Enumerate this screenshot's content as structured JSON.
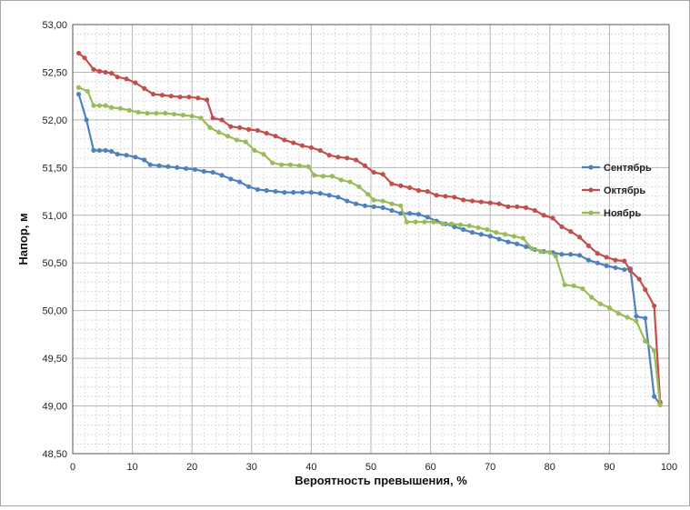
{
  "chart_data": {
    "type": "line",
    "xlabel": "Вероятность превышения, %",
    "ylabel": "Напор, м",
    "xlim": [
      0,
      100
    ],
    "ylim": [
      48.5,
      53.0
    ],
    "x_ticks": [
      "0",
      "10",
      "20",
      "30",
      "40",
      "50",
      "60",
      "70",
      "80",
      "90",
      "100"
    ],
    "y_ticks": [
      "48,50",
      "49,00",
      "49,50",
      "50,00",
      "50,50",
      "51,00",
      "51,50",
      "52,00",
      "52,50",
      "53,00"
    ],
    "grid": true,
    "legend_position": "right",
    "series": [
      {
        "name": "Сентябрь",
        "color": "#4f81bd",
        "points": [
          [
            1,
            52.27
          ],
          [
            2.3,
            52.0
          ],
          [
            3.5,
            51.68
          ],
          [
            4.5,
            51.68
          ],
          [
            5.5,
            51.68
          ],
          [
            6.5,
            51.67
          ],
          [
            7.5,
            51.64
          ],
          [
            9,
            51.63
          ],
          [
            10.5,
            51.61
          ],
          [
            12,
            51.58
          ],
          [
            13,
            51.53
          ],
          [
            14.5,
            51.52
          ],
          [
            16,
            51.51
          ],
          [
            17.5,
            51.5
          ],
          [
            19,
            51.49
          ],
          [
            20.5,
            51.48
          ],
          [
            22,
            51.46
          ],
          [
            23.5,
            51.45
          ],
          [
            25,
            51.42
          ],
          [
            26.5,
            51.38
          ],
          [
            28,
            51.35
          ],
          [
            29.5,
            51.3
          ],
          [
            31,
            51.27
          ],
          [
            32.5,
            51.26
          ],
          [
            34,
            51.25
          ],
          [
            35.5,
            51.24
          ],
          [
            37,
            51.24
          ],
          [
            38.5,
            51.24
          ],
          [
            40,
            51.24
          ],
          [
            41.5,
            51.23
          ],
          [
            43,
            51.21
          ],
          [
            44.5,
            51.19
          ],
          [
            46,
            51.15
          ],
          [
            47.5,
            51.12
          ],
          [
            49,
            51.1
          ],
          [
            50.5,
            51.09
          ],
          [
            52,
            51.08
          ],
          [
            53.5,
            51.05
          ],
          [
            55,
            51.02
          ],
          [
            56.5,
            51.02
          ],
          [
            58,
            51.01
          ],
          [
            59.5,
            50.98
          ],
          [
            61,
            50.94
          ],
          [
            62.5,
            50.91
          ],
          [
            64,
            50.88
          ],
          [
            65.5,
            50.85
          ],
          [
            67,
            50.82
          ],
          [
            68.5,
            50.8
          ],
          [
            70,
            50.78
          ],
          [
            71.5,
            50.75
          ],
          [
            73,
            50.72
          ],
          [
            74.5,
            50.7
          ],
          [
            76,
            50.67
          ],
          [
            77.5,
            50.64
          ],
          [
            79,
            50.62
          ],
          [
            80.5,
            50.61
          ],
          [
            82,
            50.59
          ],
          [
            83.5,
            50.59
          ],
          [
            85,
            50.58
          ],
          [
            86.5,
            50.53
          ],
          [
            88,
            50.5
          ],
          [
            89.5,
            50.47
          ],
          [
            91,
            50.45
          ],
          [
            92.5,
            50.43
          ],
          [
            93.5,
            50.44
          ],
          [
            94.5,
            49.94
          ],
          [
            96,
            49.92
          ],
          [
            97.5,
            49.1
          ],
          [
            98.5,
            49.02
          ]
        ]
      },
      {
        "name": "Октябрь",
        "color": "#c0504d",
        "points": [
          [
            1,
            52.7
          ],
          [
            2,
            52.65
          ],
          [
            3.5,
            52.53
          ],
          [
            4.5,
            52.51
          ],
          [
            5.5,
            52.5
          ],
          [
            6.5,
            52.49
          ],
          [
            7.5,
            52.45
          ],
          [
            9,
            52.43
          ],
          [
            10.5,
            52.39
          ],
          [
            12,
            52.33
          ],
          [
            13.5,
            52.27
          ],
          [
            15,
            52.26
          ],
          [
            16.5,
            52.25
          ],
          [
            18,
            52.24
          ],
          [
            19.5,
            52.24
          ],
          [
            21,
            52.23
          ],
          [
            22.5,
            52.21
          ],
          [
            23.5,
            52.02
          ],
          [
            25,
            52.0
          ],
          [
            26.5,
            51.93
          ],
          [
            28,
            51.92
          ],
          [
            29.5,
            51.9
          ],
          [
            31,
            51.89
          ],
          [
            32.5,
            51.86
          ],
          [
            34,
            51.83
          ],
          [
            35.5,
            51.79
          ],
          [
            37,
            51.76
          ],
          [
            38.5,
            51.73
          ],
          [
            40,
            51.71
          ],
          [
            41.5,
            51.68
          ],
          [
            43,
            51.63
          ],
          [
            44.5,
            51.61
          ],
          [
            46,
            51.6
          ],
          [
            47.5,
            51.58
          ],
          [
            49,
            51.52
          ],
          [
            50.5,
            51.45
          ],
          [
            52,
            51.43
          ],
          [
            53.5,
            51.33
          ],
          [
            55,
            51.31
          ],
          [
            56.5,
            51.29
          ],
          [
            58,
            51.26
          ],
          [
            59.5,
            51.25
          ],
          [
            61,
            51.21
          ],
          [
            62.5,
            51.2
          ],
          [
            64,
            51.19
          ],
          [
            65.5,
            51.16
          ],
          [
            67,
            51.15
          ],
          [
            68.5,
            51.14
          ],
          [
            70,
            51.13
          ],
          [
            71.5,
            51.12
          ],
          [
            73,
            51.09
          ],
          [
            74.5,
            51.09
          ],
          [
            76,
            51.08
          ],
          [
            77.5,
            51.05
          ],
          [
            79,
            51.0
          ],
          [
            80.5,
            50.97
          ],
          [
            82,
            50.88
          ],
          [
            83.5,
            50.83
          ],
          [
            85,
            50.77
          ],
          [
            86.5,
            50.68
          ],
          [
            88,
            50.6
          ],
          [
            89.5,
            50.56
          ],
          [
            91,
            50.53
          ],
          [
            92.5,
            50.52
          ],
          [
            93.5,
            50.42
          ],
          [
            95,
            50.33
          ],
          [
            96,
            50.22
          ],
          [
            97.5,
            50.05
          ],
          [
            98.5,
            49.04
          ]
        ]
      },
      {
        "name": "Ноябрь",
        "color": "#9bbb59",
        "points": [
          [
            1,
            52.34
          ],
          [
            2.5,
            52.3
          ],
          [
            3.5,
            52.15
          ],
          [
            4.5,
            52.15
          ],
          [
            5.5,
            52.15
          ],
          [
            6.5,
            52.13
          ],
          [
            8,
            52.12
          ],
          [
            9.5,
            52.1
          ],
          [
            11,
            52.08
          ],
          [
            12.5,
            52.07
          ],
          [
            14,
            52.07
          ],
          [
            15.5,
            52.07
          ],
          [
            17,
            52.06
          ],
          [
            18.5,
            52.05
          ],
          [
            20,
            52.04
          ],
          [
            21.5,
            52.02
          ],
          [
            23,
            51.92
          ],
          [
            24.5,
            51.87
          ],
          [
            26,
            51.83
          ],
          [
            27.5,
            51.79
          ],
          [
            29,
            51.77
          ],
          [
            30.5,
            51.68
          ],
          [
            32,
            51.64
          ],
          [
            33.5,
            51.55
          ],
          [
            35,
            51.53
          ],
          [
            36.5,
            51.53
          ],
          [
            38,
            51.52
          ],
          [
            39.5,
            51.51
          ],
          [
            40.5,
            51.42
          ],
          [
            42,
            51.41
          ],
          [
            43.5,
            51.41
          ],
          [
            45,
            51.37
          ],
          [
            46.5,
            51.35
          ],
          [
            48,
            51.3
          ],
          [
            49.5,
            51.22
          ],
          [
            50.5,
            51.16
          ],
          [
            52,
            51.15
          ],
          [
            53.5,
            51.12
          ],
          [
            55,
            51.1
          ],
          [
            56,
            50.93
          ],
          [
            57.5,
            50.93
          ],
          [
            59,
            50.93
          ],
          [
            60.5,
            50.93
          ],
          [
            62,
            50.91
          ],
          [
            63.5,
            50.91
          ],
          [
            65,
            50.9
          ],
          [
            66.5,
            50.89
          ],
          [
            68,
            50.87
          ],
          [
            69.5,
            50.85
          ],
          [
            71,
            50.82
          ],
          [
            72.5,
            50.8
          ],
          [
            74,
            50.78
          ],
          [
            75.5,
            50.76
          ],
          [
            77,
            50.65
          ],
          [
            78.5,
            50.62
          ],
          [
            80,
            50.61
          ],
          [
            81,
            50.57
          ],
          [
            82.5,
            50.27
          ],
          [
            84,
            50.26
          ],
          [
            85.5,
            50.23
          ],
          [
            87,
            50.14
          ],
          [
            88.5,
            50.07
          ],
          [
            90,
            50.03
          ],
          [
            91.5,
            49.97
          ],
          [
            93,
            49.93
          ],
          [
            94.5,
            49.89
          ],
          [
            96,
            49.68
          ],
          [
            97.5,
            49.58
          ],
          [
            98.5,
            49.01
          ]
        ]
      }
    ]
  }
}
